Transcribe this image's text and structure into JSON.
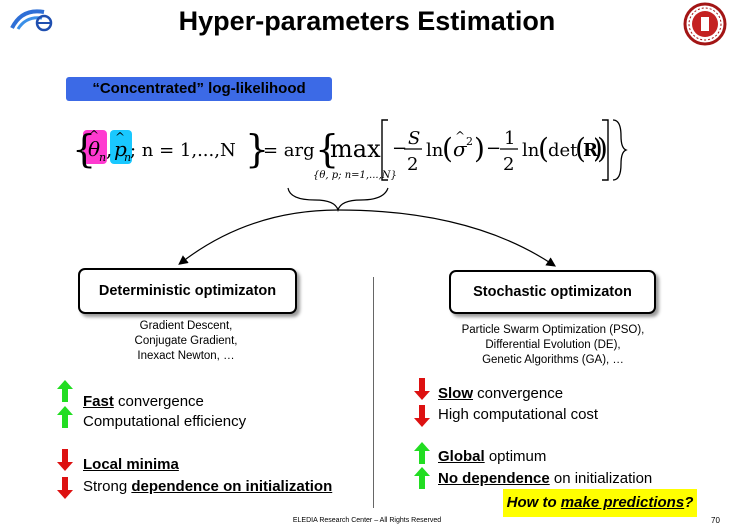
{
  "title": "Hyper-parameters Estimation",
  "tag": "“Concentrated” log-likelihood",
  "formula": {
    "theta": "θ",
    "p": "p",
    "n_sub": "n",
    "set_mid": "; n = 1,...,N",
    "eq": "= arg",
    "max": "max",
    "max_sub": "{θ, p; n=1,...,N}",
    "minus": "−",
    "S": "S",
    "two_a": "2",
    "ln_a": "ln",
    "sigma": "σ",
    "sq": "2",
    "one": "1",
    "two_b": "2",
    "ln_b": "ln",
    "det": "det",
    "R": "R"
  },
  "deterministic": {
    "box_label": "Deterministic optimizaton",
    "methods": [
      "Gradient Descent,",
      "Conjugate Gradient,",
      "Inexact Newton, …"
    ],
    "features": [
      {
        "bold": "Fast",
        "rest": " convergence",
        "dir": "up"
      },
      {
        "bold": "",
        "rest": "Computational efficiency",
        "dir": "up"
      },
      {
        "bold": "Local minima",
        "rest": "",
        "dir": "down"
      },
      {
        "pre": "Strong ",
        "bold": "dependence on initialization",
        "rest": "",
        "dir": "down"
      }
    ]
  },
  "stochastic": {
    "box_label": "Stochastic optimizaton",
    "methods": [
      "Particle Swarm Optimization (PSO),",
      "Differential Evolution (DE),",
      "Genetic Algorithms (GA), …"
    ],
    "features": [
      {
        "bold": "Slow",
        "rest": " convergence",
        "dir": "down"
      },
      {
        "bold": "",
        "rest": "High computational cost",
        "dir": "down"
      },
      {
        "bold": "Global",
        "rest": " optimum",
        "dir": "up"
      },
      {
        "bold": "No dependence",
        "rest": " on initialization",
        "dir": "up"
      }
    ]
  },
  "question": {
    "pre": "How to ",
    "underlined": "make predictions",
    "post": "?"
  },
  "footer": "ELEDIA Research Center – All Rights Reserved",
  "page_number": "70",
  "colors": {
    "tag_bg": "#3c6ae6",
    "theta_hl": "#ff3ad0",
    "p_hl": "#19c8ff",
    "arrow_up": "#22dd22",
    "arrow_down": "#dd1111",
    "question_bg": "#ffff00"
  },
  "icons": {
    "left_logo": "eledia-swoosh-logo",
    "right_logo": "university-seal-logo"
  }
}
